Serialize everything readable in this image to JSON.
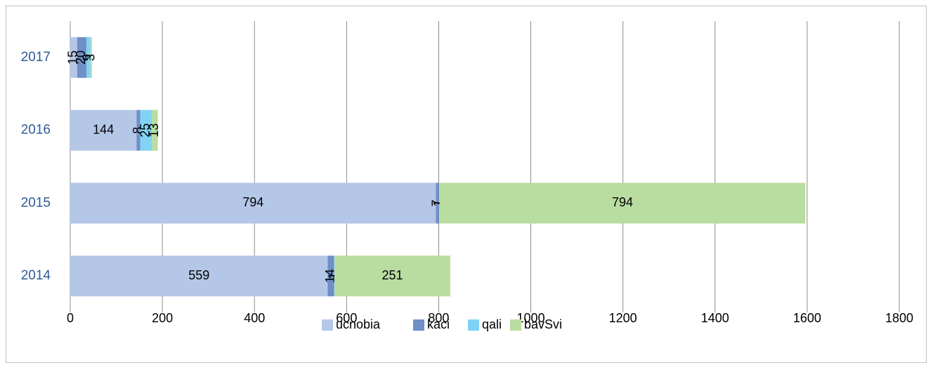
{
  "chart_data": {
    "type": "stacked_barh",
    "categories": [
      "2014",
      "2015",
      "2016",
      "2017"
    ],
    "series": [
      {
        "name": "ucnobia",
        "color": "#b4c7e7",
        "values": [
          559,
          794,
          144,
          15
        ]
      },
      {
        "name": "kaci",
        "color": "#6f8fc6",
        "values": [
          14,
          7,
          8,
          20
        ]
      },
      {
        "name": "qali",
        "color": "#7fd4f5",
        "values": [
          1,
          1,
          25,
          9
        ]
      },
      {
        "name": "bavSvi",
        "color": "#b9dca1",
        "values": [
          251,
          794,
          13,
          3
        ]
      }
    ],
    "xlim": [
      0,
      1800
    ],
    "xticks": [
      0,
      200,
      400,
      600,
      800,
      1000,
      1200,
      1400,
      1600,
      1800
    ],
    "grid": true,
    "legend": "bottom"
  }
}
